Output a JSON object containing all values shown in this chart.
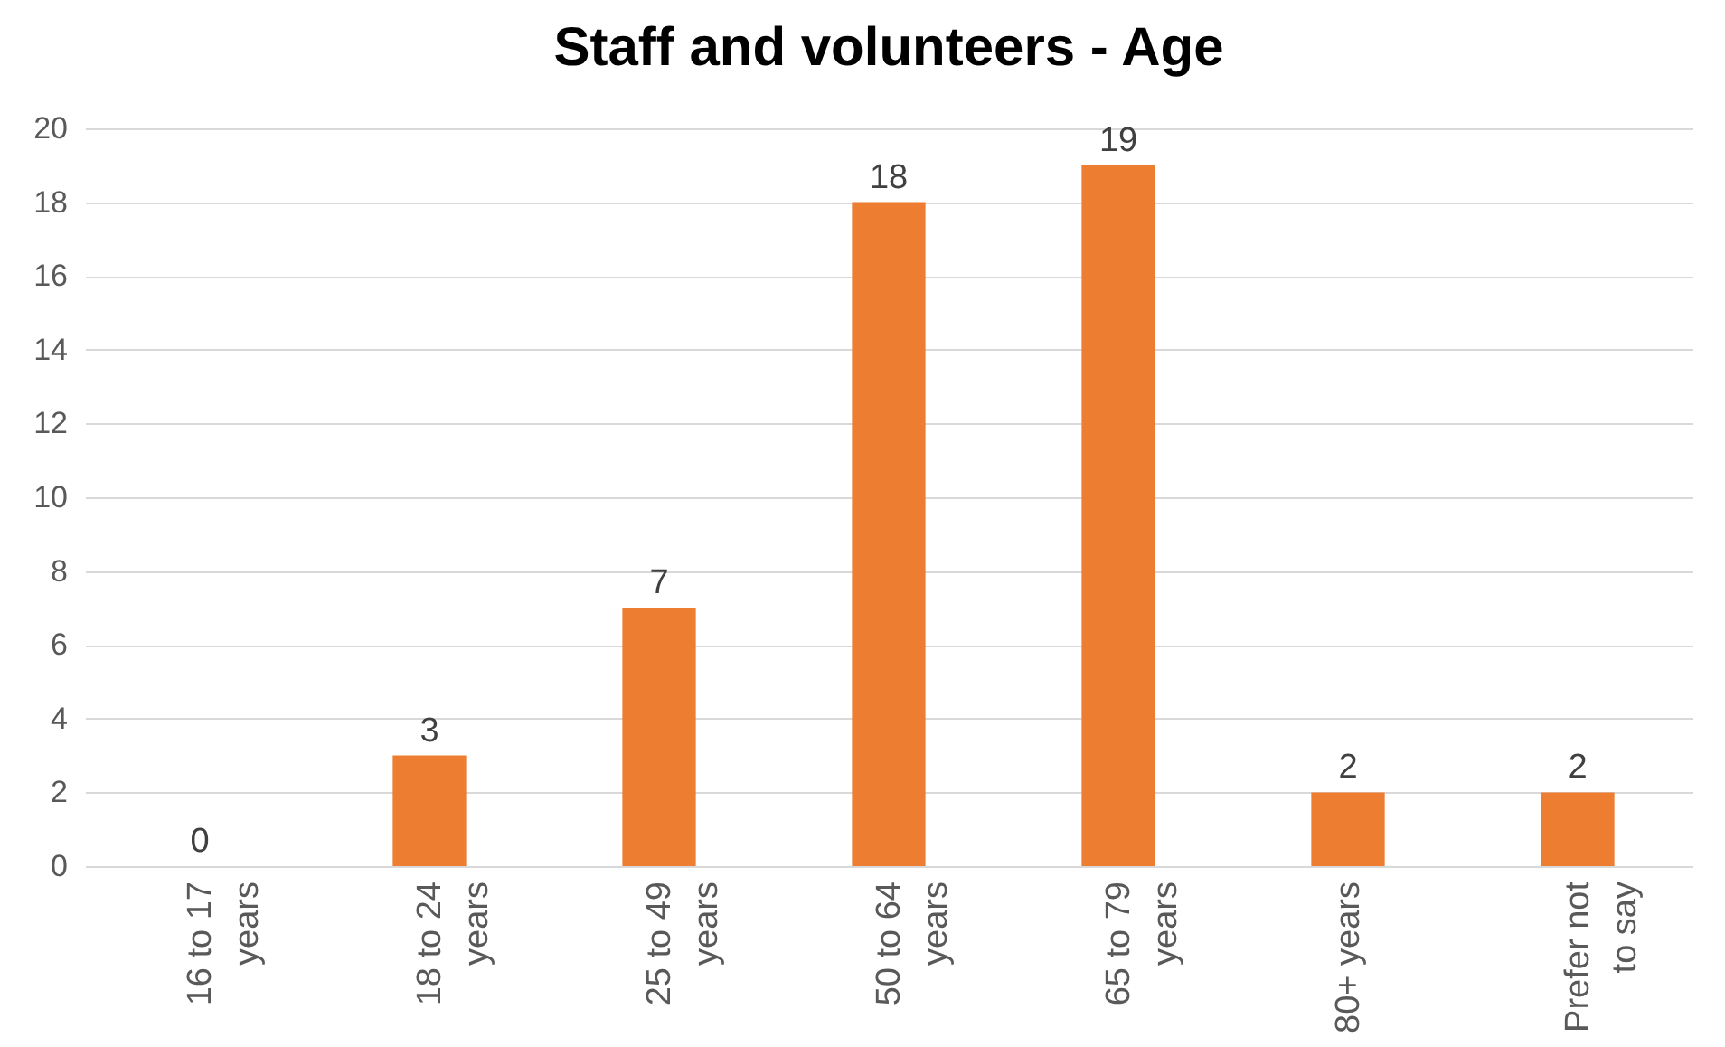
{
  "chart_data": {
    "type": "bar",
    "title": "Staff and volunteers - Age",
    "categories": [
      "16 to 17 years",
      "18 to 24 years",
      "25 to 49 years",
      "50 to 64 years",
      "65 to 79 years",
      "80+ years",
      "Prefer not to say"
    ],
    "values": [
      0,
      3,
      7,
      18,
      19,
      2,
      2
    ],
    "color": "#ed7d31",
    "ylim": [
      0,
      20
    ],
    "yticks": [
      0,
      2,
      4,
      6,
      8,
      10,
      12,
      14,
      16,
      18,
      20
    ],
    "grid": "y",
    "data_labels": true
  }
}
